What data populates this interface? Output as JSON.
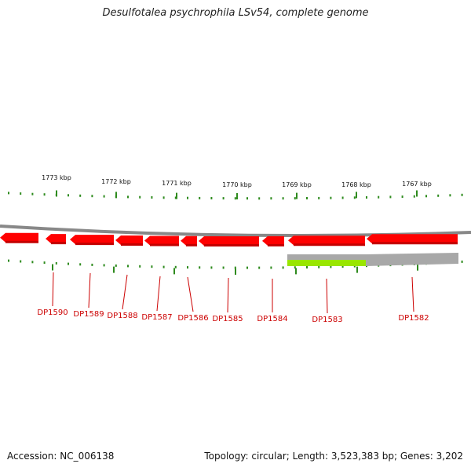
{
  "title": "Desulfotalea psychrophila LSv54, complete genome",
  "footer": {
    "accession": "Accession: NC_006138",
    "topology": "Topology: circular; Length: 3,523,383 bp; Genes: 3,202"
  },
  "colors": {
    "gene": "#ff0000",
    "gene_shadow": "#c40000",
    "backbone": "#888888",
    "tick": "#2e8b1e",
    "label": "#cc0000",
    "feature_gray": "#a8a8a8",
    "feature_green": "#99e600"
  },
  "scale": {
    "unit": "kbp",
    "labels": [
      "1773 kbp",
      "1772 kbp",
      "1771 kbp",
      "1770 kbp",
      "1769 kbp",
      "1768 kbp",
      "1767 kbp"
    ]
  },
  "genes": [
    {
      "name": "DP1590"
    },
    {
      "name": "DP1589"
    },
    {
      "name": "DP1588"
    },
    {
      "name": "DP1587"
    },
    {
      "name": "DP1586"
    },
    {
      "name": "DP1585"
    },
    {
      "name": "DP1584"
    },
    {
      "name": "DP1583"
    },
    {
      "name": "DP1582"
    }
  ]
}
